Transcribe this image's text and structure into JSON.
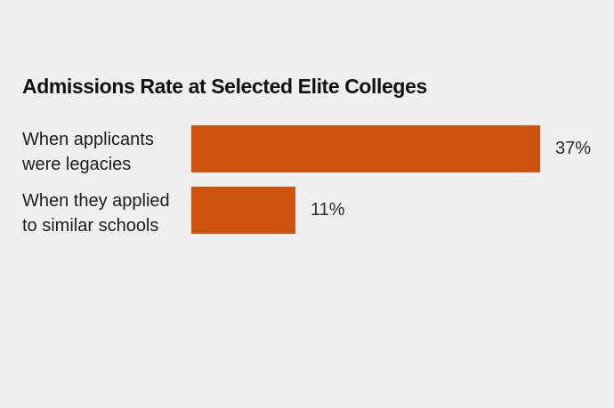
{
  "page": {
    "background_color": "#efefef"
  },
  "chart_data": {
    "type": "bar",
    "orientation": "horizontal",
    "title": "Admissions Rate at Selected Elite Colleges",
    "categories": [
      "When applicants were legacies",
      "When they applied to similar schools"
    ],
    "category_lines": [
      [
        "When applicants",
        "were legacies"
      ],
      [
        "When they applied",
        "to similar schools"
      ]
    ],
    "values": [
      37,
      11
    ],
    "value_labels": [
      "37%",
      "11%"
    ],
    "unit": "percent",
    "bar_color": "#cd530e",
    "title_color": "#121212",
    "label_color": "#1c1c1c",
    "value_color": "#2b2b2b",
    "xlim": [
      0,
      40
    ],
    "grid": false,
    "legend": false,
    "axis_ticks": "none"
  }
}
